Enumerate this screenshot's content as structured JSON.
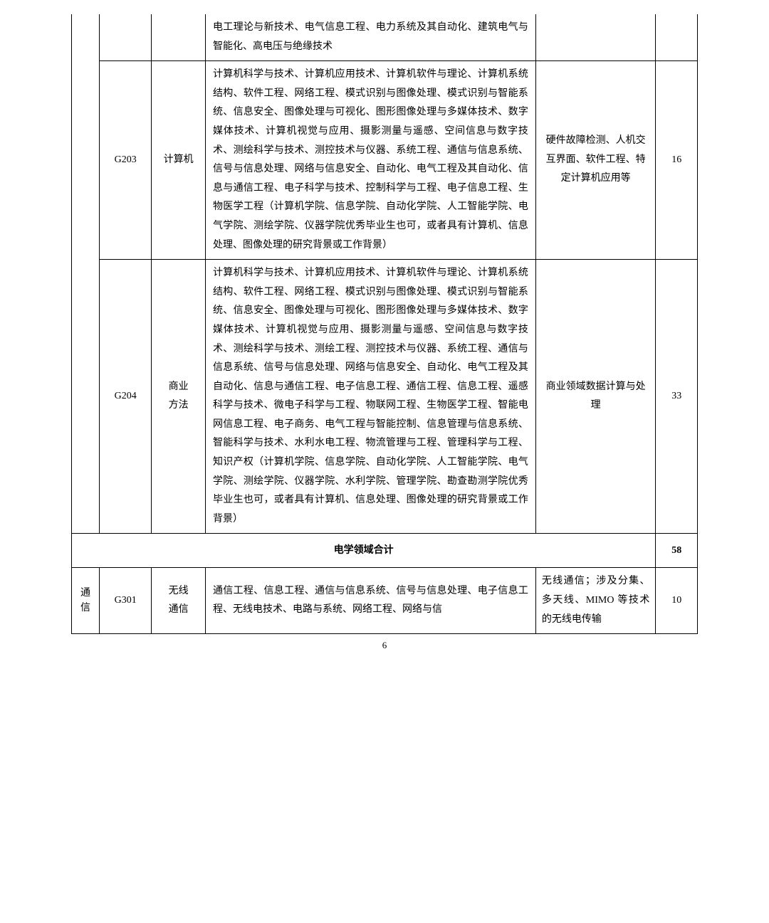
{
  "table": {
    "columns": {
      "widths": [
        32,
        60,
        62,
        380,
        138,
        48
      ],
      "headers": []
    },
    "rows": [
      {
        "col1_continued": true,
        "col2_continued": true,
        "col3_continued": true,
        "col4_continued": true,
        "desc": "电工理论与新技术、电气信息工程、电力系统及其自动化、建筑电气与智能化、高电压与绝缘技术",
        "notes_continued": true,
        "count_continued": true
      },
      {
        "code": "G203",
        "name": "计算机",
        "desc": "计算机科学与技术、计算机应用技术、计算机软件与理论、计算机系统结构、软件工程、网络工程、模式识别与图像处理、模式识别与智能系统、信息安全、图像处理与可视化、图形图像处理与多媒体技术、数字媒体技术、计算机视觉与应用、摄影测量与遥感、空间信息与数字技术、测绘科学与技术、测控技术与仪器、系统工程、通信与信息系统、信号与信息处理、网络与信息安全、自动化、电气工程及其自动化、信息与通信工程、电子科学与技术、控制科学与工程、电子信息工程、生物医学工程（计算机学院、信息学院、自动化学院、人工智能学院、电气学院、测绘学院、仪器学院优秀毕业生也可，或者具有计算机、信息处理、图像处理的研究背景或工作背景）",
        "notes": "硬件故障检测、人机交互界面、软件工程、特定计算机应用等",
        "count": "16"
      },
      {
        "code": "G204",
        "name_line1": "商业",
        "name_line2": "方法",
        "desc": "计算机科学与技术、计算机应用技术、计算机软件与理论、计算机系统结构、软件工程、网络工程、模式识别与图像处理、模式识别与智能系统、信息安全、图像处理与可视化、图形图像处理与多媒体技术、数字媒体技术、计算机视觉与应用、摄影测量与遥感、空间信息与数字技术、测绘科学与技术、测绘工程、测控技术与仪器、系统工程、通信与信息系统、信号与信息处理、网络与信息安全、自动化、电气工程及其自动化、信息与通信工程、电子信息工程、通信工程、信息工程、遥感科学与技术、微电子科学与工程、物联网工程、生物医学工程、智能电网信息工程、电子商务、电气工程与智能控制、信息管理与信息系统、智能科学与技术、水利水电工程、物流管理与工程、管理科学与工程、知识产权（计算机学院、信息学院、自动化学院、人工智能学院、电气学院、测绘学院、仪器学院、水利学院、管理学院、勘查勘测学院优秀毕业生也可，或者具有计算机、信息处理、图像处理的研究背景或工作背景）",
        "notes": "商业领域数据计算与处理",
        "count": "33"
      }
    ],
    "subtotal": {
      "label": "电学领域合计",
      "count": "58"
    },
    "next_section": {
      "category_line1": "通",
      "category_line2": "信",
      "code": "G301",
      "name_line1": "无线",
      "name_line2": "通信",
      "desc": "通信工程、信息工程、通信与信息系统、信号与信息处理、电子信息工程、无线电技术、电路与系统、网络工程、网络与信",
      "notes": "无线通信；涉及分集、多天线、MIMO 等技术的无线电传输",
      "count": "10"
    }
  },
  "page_number": "6",
  "styles": {
    "background_color": "#ffffff",
    "border_color": "#000000",
    "text_color": "#000000",
    "font_family": "SimSun",
    "font_size": 14,
    "line_height": 1.9
  }
}
